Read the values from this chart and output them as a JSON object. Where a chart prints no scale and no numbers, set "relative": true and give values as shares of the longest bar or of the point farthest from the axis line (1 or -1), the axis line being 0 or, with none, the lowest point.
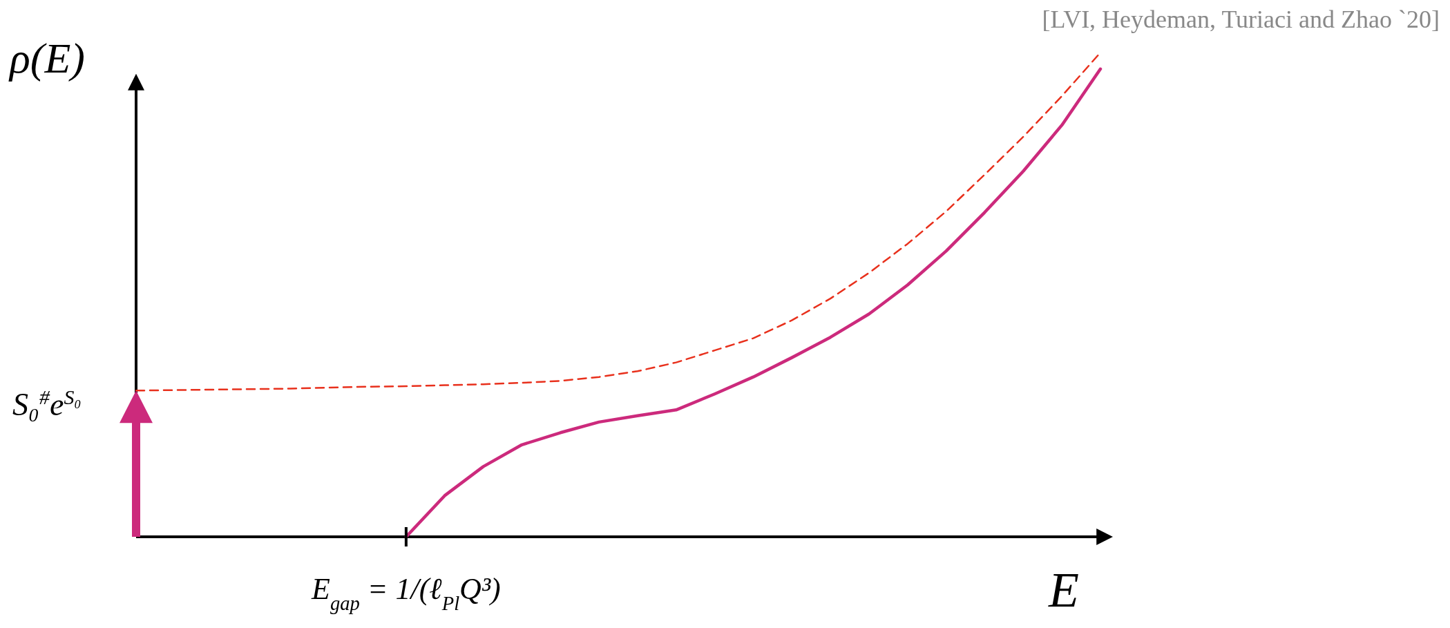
{
  "chart_data": {
    "type": "line",
    "relative": true,
    "ylabel": "ρ(E)",
    "xlabel": "E",
    "marker": "none",
    "categories": [
      null,
      null,
      null,
      null,
      null,
      null,
      null,
      null,
      null,
      null,
      null,
      null,
      null,
      null,
      null,
      null,
      null,
      null,
      null,
      null,
      null,
      null,
      null,
      null,
      null,
      null
    ],
    "series": [
      {
        "color": "#e8301c",
        "line_style": "dashed",
        "values": [
          0.302,
          0.303,
          0.304,
          0.305,
          0.306,
          0.308,
          0.31,
          0.311,
          0.313,
          0.315,
          0.318,
          0.322,
          0.33,
          0.342,
          0.36,
          0.385,
          0.41,
          0.447,
          0.492,
          0.545,
          0.605,
          0.672,
          0.748,
          0.826,
          0.91,
          1
        ]
      },
      {
        "color": "#cc2a7c",
        "line_style": "solid",
        "values": [
          null,
          null,
          null,
          null,
          null,
          null,
          null,
          0,
          0.085,
          0.145,
          0.19,
          0.215,
          0.237,
          0.25,
          0.262,
          0.295,
          0.33,
          0.37,
          0.412,
          0.46,
          0.52,
          0.59,
          0.67,
          0.755,
          0.85,
          0.966
        ]
      }
    ],
    "annotations": [
      "E$_{gap}$ = 1/(ℓ$_{Pl}$Q³)",
      "S₀$^{#}$e$^{S₀}$",
      "[LVI, Heydeman, Turiaci and Zhao `20]"
    ]
  }
}
